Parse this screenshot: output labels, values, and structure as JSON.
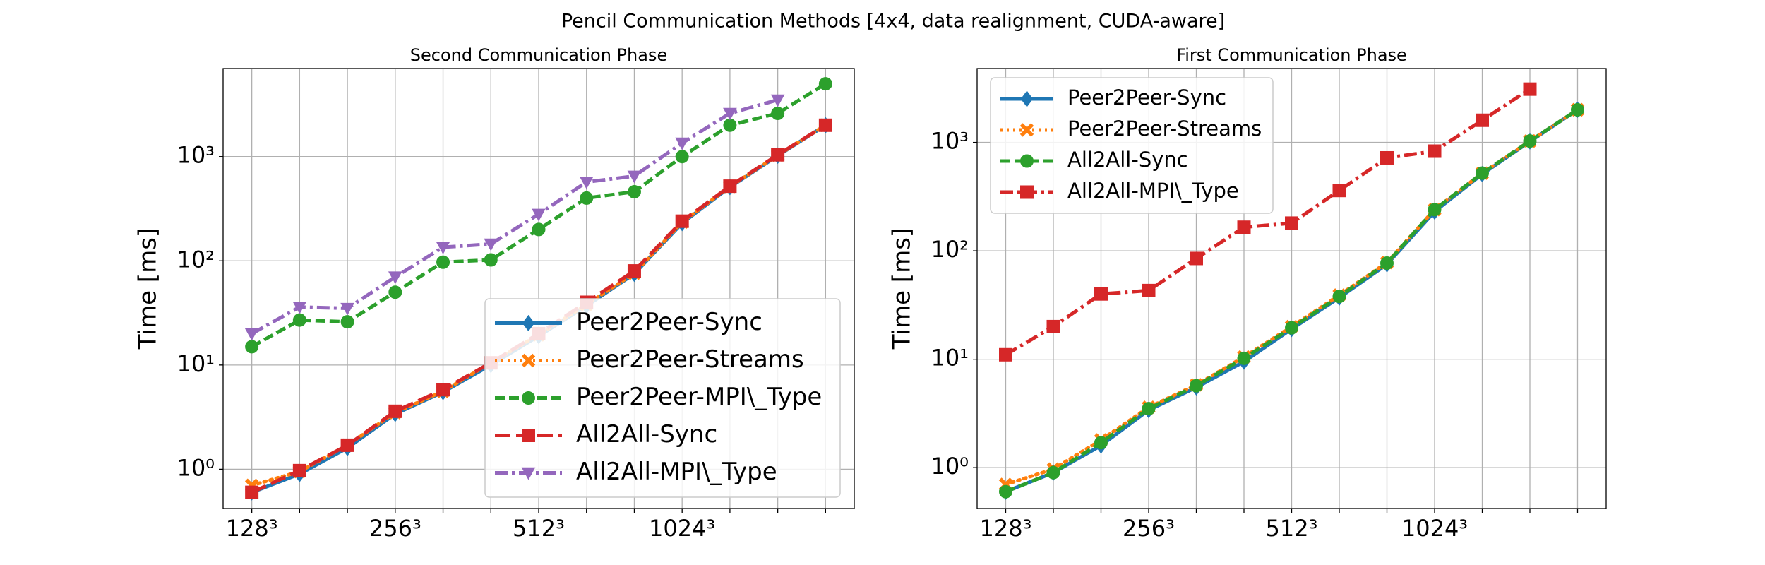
{
  "title": "Pencil Communication Methods [4x4, data realignment, CUDA-aware]",
  "chart_data": [
    {
      "type": "line",
      "title": "Second Communication Phase",
      "y_label": "Time [ms]",
      "log_y": true,
      "grid": true,
      "legend": "lower right",
      "categories": [
        "128³",
        null,
        null,
        "256³",
        null,
        null,
        "512³",
        null,
        null,
        "1024³",
        null,
        null,
        null
      ],
      "xlim": [
        -0.6,
        12.6
      ],
      "ylim": [
        0.42,
        7000
      ],
      "yticks": [
        {
          "value": 1,
          "label": "10⁰"
        },
        {
          "value": 10,
          "label": "10¹"
        },
        {
          "value": 100,
          "label": "10²"
        },
        {
          "value": 1000,
          "label": "10³"
        }
      ],
      "series": [
        {
          "name": "Peer2Peer-Sync",
          "color": "#1f77b4",
          "linestyle": "solid",
          "marker": "diamond",
          "values": [
            0.6,
            0.9,
            1.6,
            3.4,
            5.5,
            10,
            19,
            37,
            75,
            230,
            510,
            1020,
            2000
          ]
        },
        {
          "name": "Peer2Peer-Streams",
          "color": "#ff7f0e",
          "linestyle": "dotted",
          "marker": "x",
          "values": [
            0.7,
            0.95,
            1.7,
            3.5,
            5.6,
            10.5,
            19.5,
            38,
            76,
            235,
            515,
            1030,
            2000
          ]
        },
        {
          "name": "Peer2Peer-MPI\\_Type",
          "color": "#2ca02c",
          "linestyle": "dashed",
          "marker": "circle",
          "values": [
            15,
            27,
            26,
            50,
            97,
            102,
            200,
            400,
            460,
            1000,
            2000,
            2600,
            5000
          ]
        },
        {
          "name": "All2All-Sync",
          "color": "#d62728",
          "linestyle": "longdash",
          "marker": "square",
          "values": [
            0.6,
            0.97,
            1.7,
            3.6,
            5.8,
            10.5,
            20,
            40,
            80,
            240,
            520,
            1040,
            2000
          ]
        },
        {
          "name": "All2All-MPI\\_Type",
          "color": "#9467bd",
          "linestyle": "dashdot",
          "marker": "triangle-down",
          "values": [
            20,
            36,
            35,
            70,
            135,
            145,
            280,
            570,
            650,
            1350,
            2600,
            3500,
            null
          ]
        }
      ]
    },
    {
      "type": "line",
      "title": "First Communication Phase",
      "y_label": "Time [ms]",
      "log_y": true,
      "grid": true,
      "legend": "upper left",
      "categories": [
        "128³",
        null,
        null,
        "256³",
        null,
        null,
        "512³",
        null,
        null,
        "1024³",
        null,
        null,
        null
      ],
      "xlim": [
        -0.6,
        12.6
      ],
      "ylim": [
        0.42,
        4800
      ],
      "yticks": [
        {
          "value": 1,
          "label": "10⁰"
        },
        {
          "value": 10,
          "label": "10¹"
        },
        {
          "value": 100,
          "label": "10²"
        },
        {
          "value": 1000,
          "label": "10³"
        }
      ],
      "series": [
        {
          "name": "Peer2Peer-Sync",
          "color": "#1f77b4",
          "linestyle": "solid",
          "marker": "diamond",
          "values": [
            0.6,
            0.9,
            1.6,
            3.4,
            5.5,
            9.5,
            19,
            37,
            75,
            230,
            510,
            1020,
            2000
          ]
        },
        {
          "name": "Peer2Peer-Streams",
          "color": "#ff7f0e",
          "linestyle": "dotted",
          "marker": "x",
          "values": [
            0.7,
            0.97,
            1.8,
            3.6,
            5.8,
            10.5,
            20,
            39,
            78,
            240,
            520,
            1030,
            2000
          ]
        },
        {
          "name": "All2All-Sync",
          "color": "#2ca02c",
          "linestyle": "dashed",
          "marker": "circle",
          "values": [
            0.6,
            0.9,
            1.7,
            3.5,
            5.7,
            10.2,
            19.5,
            38,
            77,
            240,
            520,
            1030,
            2000
          ]
        },
        {
          "name": "All2All-MPI\\_Type",
          "color": "#d62728",
          "linestyle": "dashdot",
          "marker": "square",
          "values": [
            11,
            20,
            40,
            43,
            85,
            165,
            180,
            360,
            720,
            830,
            1600,
            3100,
            null
          ]
        }
      ]
    }
  ]
}
